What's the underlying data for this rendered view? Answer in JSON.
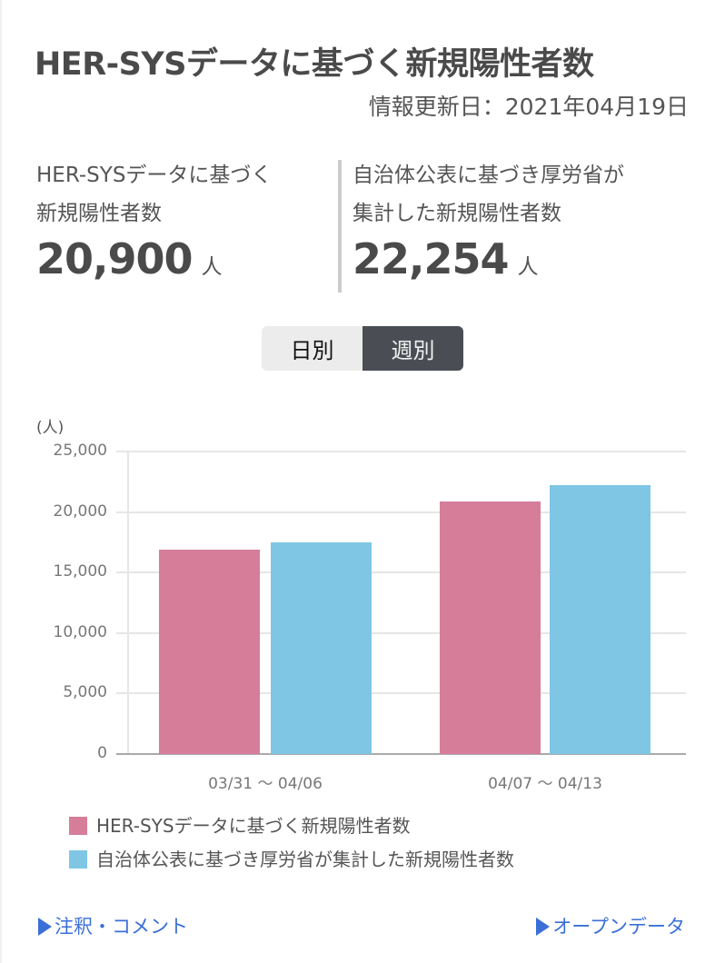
{
  "header": {
    "title": "HER-SYSデータに基づく新規陽性者数",
    "updated": "情報更新日：2021年04月19日"
  },
  "stats": [
    {
      "label_line1": "HER-SYSデータに基づく",
      "label_line2": "新規陽性者数",
      "value": "20,900",
      "unit": "人"
    },
    {
      "label_line1": "自治体公表に基づき厚労省が",
      "label_line2": "集計した新規陽性者数",
      "value": "22,254",
      "unit": "人"
    }
  ],
  "toggle": {
    "daily": "日別",
    "weekly": "週別",
    "selected": "weekly"
  },
  "chart_data": {
    "type": "bar",
    "title": "",
    "xlabel": "",
    "ylabel": "(人)",
    "ylim": [
      0,
      25000
    ],
    "yticks": [
      "0",
      "5,000",
      "10,000",
      "15,000",
      "20,000",
      "25,000"
    ],
    "grid": true,
    "legend_position": "bottom",
    "categories": [
      "03/31 〜 04/06",
      "04/07 〜 04/13"
    ],
    "series": [
      {
        "name": "HER-SYSデータに基づく新規陽性者数",
        "color": "#d57d99",
        "values": [
          16900,
          20900
        ]
      },
      {
        "name": "自治体公表に基づき厚労省が集計した新規陽性者数",
        "color": "#7fc6e4",
        "values": [
          17500,
          22254
        ]
      }
    ]
  },
  "footer": {
    "notes_link": "注釈・コメント",
    "opendata_link": "オープンデータ"
  }
}
